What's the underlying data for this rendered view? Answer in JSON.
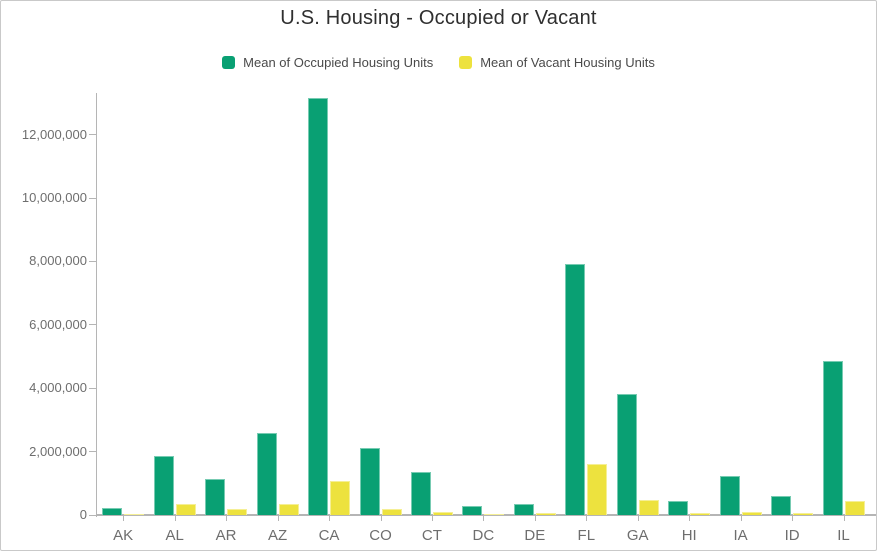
{
  "title": "U.S. Housing - Occupied or Vacant",
  "legend": {
    "items": [
      {
        "label": "Mean of Occupied Housing Units",
        "color": "#09a073"
      },
      {
        "label": "Mean of Vacant Housing Units",
        "color": "#ede23e"
      }
    ]
  },
  "axes": {
    "line_color": "#b5b5b5",
    "label_color": "#6e6e6e",
    "ytick_labels": [
      "0",
      "2,000,000",
      "4,000,000",
      "6,000,000",
      "8,000,000",
      "10,000,000",
      "12,000,000"
    ]
  },
  "chart_data": {
    "type": "bar",
    "title": "U.S. Housing - Occupied or Vacant",
    "categories": [
      "AK",
      "AL",
      "AR",
      "AZ",
      "CA",
      "CO",
      "CT",
      "DC",
      "DE",
      "FL",
      "GA",
      "HI",
      "IA",
      "ID",
      "IL"
    ],
    "series": [
      {
        "name": "Mean of Occupied Housing Units",
        "color": "#09a073",
        "values": [
          220000,
          1860000,
          1130000,
          2600000,
          13150000,
          2100000,
          1370000,
          270000,
          350000,
          7930000,
          3820000,
          440000,
          1240000,
          610000,
          4850000
        ]
      },
      {
        "name": "Mean of Vacant Housing Units",
        "color": "#ede23e",
        "values": [
          40000,
          340000,
          180000,
          360000,
          1080000,
          200000,
          105000,
          30000,
          50000,
          1600000,
          470000,
          60000,
          105000,
          60000,
          450000
        ]
      }
    ],
    "xlabel": "",
    "ylabel": "",
    "ylim": [
      0,
      13400000
    ],
    "ytick_step": 2000000,
    "grid": false,
    "legend_position": "top"
  }
}
